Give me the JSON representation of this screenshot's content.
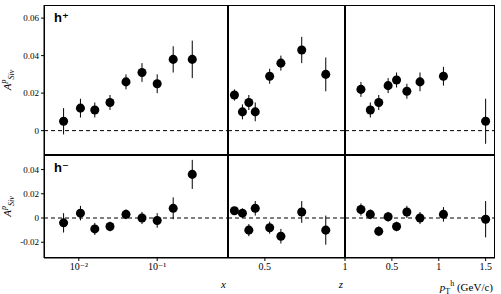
{
  "chart_data": [
    {
      "type": "scatter",
      "annotation": "h⁺",
      "ylabel": {
        "base": "A",
        "sup": "p",
        "sub": "Siv"
      },
      "log": "x",
      "tick_labels": "y",
      "color": "#000000",
      "marker": "circle",
      "hline": 0,
      "x": [
        0.0064,
        0.0105,
        0.016,
        0.025,
        0.04,
        0.064,
        0.1,
        0.16,
        0.28
      ],
      "values": [
        0.005,
        0.012,
        0.011,
        0.015,
        0.026,
        0.031,
        0.025,
        0.038,
        0.038
      ],
      "errors": [
        0.007,
        0.005,
        0.004,
        0.004,
        0.004,
        0.005,
        0.005,
        0.007,
        0.01
      ],
      "xlim": [
        0.0036,
        0.8
      ],
      "xticks": [
        {
          "value": 0.01,
          "label": "10⁻²"
        },
        {
          "value": 0.1,
          "label": "10⁻¹"
        }
      ],
      "ylim": [
        -0.013,
        0.067
      ],
      "yticks": [
        0,
        0.02,
        0.04,
        0.06
      ]
    },
    {
      "type": "scatter",
      "tick_labels": false,
      "color": "#000000",
      "marker": "circle",
      "hline": 0,
      "x": [
        0.31,
        0.36,
        0.4,
        0.44,
        0.53,
        0.6,
        0.73,
        0.88
      ],
      "values": [
        0.019,
        0.01,
        0.015,
        0.01,
        0.029,
        0.036,
        0.043,
        0.03
      ],
      "errors": [
        0.003,
        0.004,
        0.004,
        0.005,
        0.004,
        0.004,
        0.007,
        0.009
      ],
      "xlim": [
        0.27,
        1
      ],
      "xticks": [
        0.5,
        1
      ],
      "ylim": [
        -0.013,
        0.067
      ],
      "yticks": [
        0,
        0.02,
        0.04,
        0.06
      ]
    },
    {
      "type": "scatter",
      "tick_labels": false,
      "color": "#000000",
      "marker": "circle",
      "hline": 0,
      "x": [
        0.17,
        0.27,
        0.36,
        0.46,
        0.55,
        0.66,
        0.8,
        1.05,
        1.5
      ],
      "values": [
        0.022,
        0.011,
        0.015,
        0.024,
        0.027,
        0.021,
        0.026,
        0.029,
        0.005
      ],
      "errors": [
        0.004,
        0.004,
        0.004,
        0.004,
        0.004,
        0.004,
        0.005,
        0.005,
        0.012
      ],
      "xlim": [
        0,
        1.6
      ],
      "xticks": [
        0.5,
        1,
        1.5
      ],
      "ylim": [
        -0.013,
        0.067
      ],
      "yticks": [
        0,
        0.02,
        0.04,
        0.06
      ]
    },
    {
      "type": "scatter",
      "annotation": "h⁻",
      "ylabel": {
        "base": "A",
        "sup": "p",
        "sub": "Siv"
      },
      "xlabel": {
        "base": "x"
      },
      "log": "x",
      "color": "#000000",
      "marker": "circle",
      "hline": 0,
      "x": [
        0.0064,
        0.0105,
        0.016,
        0.025,
        0.04,
        0.064,
        0.1,
        0.16,
        0.28
      ],
      "values": [
        -0.004,
        0.004,
        -0.009,
        -0.007,
        0.003,
        0.0,
        -0.002,
        0.008,
        0.036
      ],
      "errors": [
        0.008,
        0.006,
        0.005,
        0.004,
        0.004,
        0.005,
        0.006,
        0.009,
        0.012
      ],
      "xlim": [
        0.0036,
        0.8
      ],
      "xticks": [
        {
          "value": 0.01,
          "label": "10⁻²"
        },
        {
          "value": 0.1,
          "label": "10⁻¹"
        }
      ],
      "ylim": [
        -0.033,
        0.052
      ],
      "yticks": [
        -0.02,
        0,
        0.02,
        0.04
      ]
    },
    {
      "type": "scatter",
      "xlabel": {
        "base": "z"
      },
      "tick_labels": "x",
      "color": "#000000",
      "marker": "circle",
      "hline": 0,
      "x": [
        0.31,
        0.36,
        0.4,
        0.44,
        0.53,
        0.6,
        0.73,
        0.88
      ],
      "values": [
        0.006,
        0.004,
        -0.01,
        0.008,
        -0.008,
        -0.015,
        0.005,
        -0.01
      ],
      "errors": [
        0.003,
        0.004,
        0.005,
        0.006,
        0.005,
        0.006,
        0.009,
        0.012
      ],
      "xlim": [
        0.27,
        1
      ],
      "xticks": [
        0.5,
        1
      ],
      "ylim": [
        -0.033,
        0.052
      ],
      "yticks": [
        -0.02,
        0,
        0.02,
        0.04
      ]
    },
    {
      "type": "scatter",
      "xlabel": {
        "base": "p",
        "sub": "T",
        "sup": "h",
        "rest": " (GeV/c)"
      },
      "tick_labels": "x",
      "color": "#000000",
      "marker": "circle",
      "hline": 0,
      "x": [
        0.17,
        0.27,
        0.36,
        0.46,
        0.55,
        0.66,
        0.8,
        1.05,
        1.5
      ],
      "values": [
        0.007,
        0.003,
        -0.011,
        0.001,
        -0.007,
        0.005,
        0.0,
        0.003,
        -0.001
      ],
      "errors": [
        0.005,
        0.004,
        0.004,
        0.004,
        0.004,
        0.005,
        0.005,
        0.006,
        0.015
      ],
      "xlim": [
        0,
        1.6
      ],
      "xticks": [
        0.5,
        1,
        1.5
      ],
      "ylim": [
        -0.033,
        0.052
      ],
      "yticks": [
        -0.02,
        0,
        0.02,
        0.04
      ]
    }
  ]
}
